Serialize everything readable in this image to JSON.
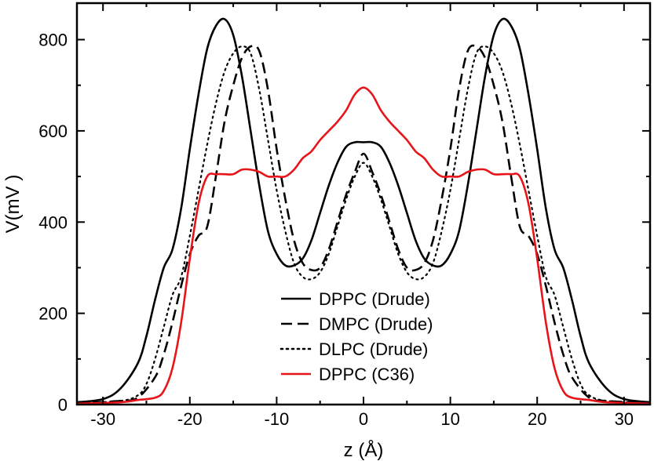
{
  "chart_data": {
    "type": "line",
    "title": "",
    "xlabel": "z (Å)",
    "ylabel": "V(mV )",
    "xlim": [
      -33,
      33
    ],
    "ylim": [
      0,
      880
    ],
    "xticks": [
      -30,
      -20,
      -10,
      0,
      10,
      20,
      30
    ],
    "xtick_labels": [
      "-30",
      "-20",
      "-10",
      "0",
      "10",
      "20",
      "30"
    ],
    "yticks": [
      0,
      200,
      400,
      600,
      800
    ],
    "ytick_labels": [
      "0",
      "200",
      "400",
      "600",
      "800"
    ],
    "grid": false,
    "legend_position": "bottom-center",
    "series": [
      {
        "name": "DPPC (Drude)",
        "color": "#000000",
        "dash": "solid",
        "x": [
          -33,
          -30,
          -28,
          -26,
          -25,
          -24,
          -23,
          -22,
          -21,
          -20,
          -19,
          -18,
          -17,
          -16,
          -15,
          -14,
          -13,
          -12,
          -11,
          -10,
          -9,
          -8,
          -7,
          -6,
          -5,
          -4,
          -3,
          -2,
          -1,
          0,
          1,
          2,
          3,
          4,
          5,
          6,
          7,
          8,
          9,
          10,
          11,
          12,
          13,
          14,
          15,
          16,
          17,
          18,
          19,
          20,
          21,
          22,
          23,
          24,
          25,
          26,
          28,
          30,
          33
        ],
        "y": [
          5,
          12,
          35,
          90,
          150,
          230,
          300,
          340,
          430,
          560,
          680,
          780,
          830,
          845,
          810,
          720,
          600,
          480,
          380,
          330,
          305,
          305,
          320,
          360,
          420,
          480,
          530,
          565,
          575,
          575,
          575,
          565,
          530,
          480,
          420,
          360,
          320,
          305,
          305,
          330,
          380,
          480,
          600,
          720,
          810,
          845,
          830,
          780,
          680,
          560,
          430,
          340,
          300,
          230,
          150,
          90,
          35,
          12,
          5
        ]
      },
      {
        "name": "DMPC (Drude)",
        "color": "#000000",
        "dash": "long-dash",
        "x": [
          -33,
          -28,
          -26,
          -24,
          -23,
          -22,
          -21,
          -20,
          -19,
          -18,
          -17,
          -16,
          -15,
          -14,
          -13,
          -12,
          -11,
          -10,
          -9,
          -8,
          -7,
          -6,
          -5,
          -4,
          -3,
          -2,
          -1,
          0,
          1,
          2,
          3,
          4,
          5,
          6,
          7,
          8,
          9,
          10,
          11,
          12,
          13,
          14,
          15,
          16,
          17,
          18,
          19,
          20,
          21,
          22,
          23,
          24,
          26,
          28,
          33
        ],
        "y": [
          3,
          8,
          15,
          60,
          110,
          180,
          260,
          330,
          370,
          390,
          500,
          620,
          700,
          760,
          785,
          775,
          690,
          560,
          450,
          360,
          310,
          295,
          300,
          340,
          400,
          460,
          510,
          550,
          510,
          460,
          400,
          340,
          300,
          295,
          310,
          360,
          450,
          560,
          690,
          775,
          785,
          760,
          700,
          620,
          500,
          390,
          370,
          330,
          260,
          180,
          110,
          60,
          15,
          8,
          3
        ]
      },
      {
        "name": "DLPC (Drude)",
        "color": "#000000",
        "dash": "dotted",
        "x": [
          -33,
          -28,
          -26,
          -25,
          -24,
          -23,
          -22,
          -21,
          -20,
          -19,
          -18,
          -17,
          -16,
          -15,
          -14,
          -13,
          -12,
          -11,
          -10,
          -9,
          -8,
          -7,
          -6,
          -5,
          -4,
          -3,
          -2,
          -1,
          0,
          1,
          2,
          3,
          4,
          5,
          6,
          7,
          8,
          9,
          10,
          11,
          12,
          13,
          14,
          15,
          16,
          17,
          18,
          19,
          20,
          21,
          22,
          23,
          24,
          25,
          26,
          28,
          33
        ],
        "y": [
          3,
          8,
          20,
          45,
          100,
          170,
          240,
          280,
          370,
          470,
          570,
          660,
          730,
          770,
          785,
          770,
          690,
          580,
          470,
          380,
          310,
          280,
          275,
          290,
          330,
          390,
          450,
          500,
          530,
          500,
          450,
          390,
          330,
          290,
          275,
          280,
          310,
          380,
          470,
          580,
          690,
          770,
          785,
          770,
          730,
          660,
          570,
          470,
          370,
          280,
          240,
          170,
          100,
          45,
          20,
          8,
          3
        ]
      },
      {
        "name": "DPPC (C36)",
        "color": "#e8141a",
        "dash": "solid",
        "x": [
          -33,
          -28,
          -26,
          -24,
          -23,
          -22,
          -21,
          -20,
          -19,
          -18,
          -17,
          -16,
          -15,
          -14,
          -13,
          -12,
          -11,
          -10,
          -9,
          -8,
          -7,
          -6,
          -5,
          -4,
          -3,
          -2,
          -1,
          0,
          1,
          2,
          3,
          4,
          5,
          6,
          7,
          8,
          9,
          10,
          11,
          12,
          13,
          14,
          15,
          16,
          17,
          18,
          19,
          20,
          21,
          22,
          23,
          24,
          26,
          28,
          33
        ],
        "y": [
          2,
          5,
          10,
          15,
          30,
          80,
          180,
          320,
          440,
          500,
          505,
          505,
          505,
          515,
          515,
          510,
          500,
          500,
          500,
          515,
          540,
          555,
          580,
          600,
          620,
          645,
          680,
          695,
          680,
          645,
          620,
          600,
          580,
          555,
          540,
          515,
          500,
          500,
          500,
          510,
          515,
          515,
          505,
          505,
          505,
          500,
          440,
          320,
          180,
          80,
          30,
          15,
          10,
          5,
          2
        ]
      }
    ]
  }
}
